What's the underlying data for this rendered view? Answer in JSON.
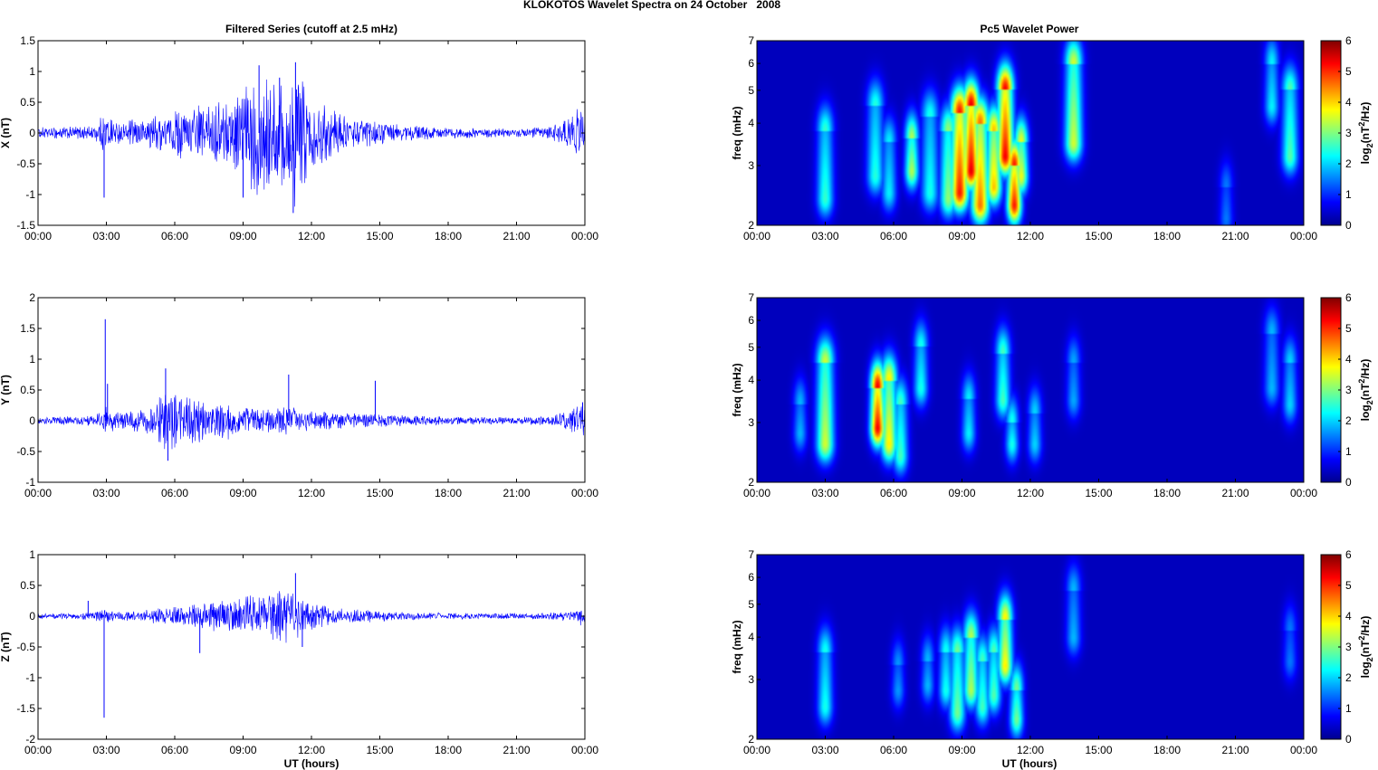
{
  "figure": {
    "title": "KLOKOTOS Wavelet Spectra on 24 October   2008",
    "left_title": "Filtered Series (cutoff at 2.5 mHz)",
    "right_title": "Pc5 Wavelet Power",
    "xlabel": "UT (hours)",
    "colors": {
      "series_line": "#0000ff",
      "background_dark_blue": "#00008f",
      "axes": "#000000"
    }
  },
  "chart_data": [
    {
      "type": "line",
      "panel": "X",
      "ylabel": "X (nT)",
      "xlim": [
        0,
        24
      ],
      "ylim": [
        -1.5,
        1.5
      ],
      "xticks": [
        "00:00",
        "03:00",
        "06:00",
        "09:00",
        "12:00",
        "15:00",
        "18:00",
        "21:00",
        "00:00"
      ],
      "yticks": [
        "-1.5",
        "-1",
        "-0.5",
        "0",
        "0.5",
        "1",
        "1.5"
      ],
      "amplitude_envelope": {
        "x": [
          0,
          2.5,
          2.9,
          3.5,
          5,
          6,
          7,
          8,
          9,
          9.5,
          10,
          10.5,
          11,
          11.3,
          12,
          13,
          14,
          15,
          16,
          18,
          21,
          22.5,
          23.5,
          24
        ],
        "y": [
          0.08,
          0.1,
          0.3,
          0.15,
          0.25,
          0.35,
          0.4,
          0.45,
          0.6,
          0.9,
          1.0,
          0.8,
          1.0,
          1.1,
          0.5,
          0.35,
          0.2,
          0.18,
          0.12,
          0.08,
          0.06,
          0.1,
          0.3,
          0.5
        ]
      },
      "spikes": [
        {
          "x": 2.9,
          "y": -1.05
        },
        {
          "x": 9.0,
          "y": -1.05
        },
        {
          "x": 9.7,
          "y": 1.1
        },
        {
          "x": 10.6,
          "y": 0.9
        },
        {
          "x": 11.2,
          "y": -1.3
        },
        {
          "x": 11.3,
          "y": 1.15
        },
        {
          "x": 24.0,
          "y": -0.6
        }
      ]
    },
    {
      "type": "line",
      "panel": "Y",
      "ylabel": "Y (nT)",
      "xlim": [
        0,
        24
      ],
      "ylim": [
        -1,
        2
      ],
      "xticks": [
        "00:00",
        "03:00",
        "06:00",
        "09:00",
        "12:00",
        "15:00",
        "18:00",
        "21:00",
        "00:00"
      ],
      "yticks": [
        "-1",
        "-0.5",
        "0",
        "0.5",
        "1",
        "1.5",
        "2"
      ],
      "amplitude_envelope": {
        "x": [
          0,
          2.5,
          2.9,
          3.5,
          5,
          5.5,
          6,
          7,
          8,
          9,
          10,
          11,
          12,
          13,
          14.5,
          16,
          18,
          21,
          22.5,
          23.5,
          24
        ],
        "y": [
          0.05,
          0.08,
          0.25,
          0.12,
          0.2,
          0.45,
          0.4,
          0.35,
          0.3,
          0.22,
          0.2,
          0.2,
          0.15,
          0.12,
          0.1,
          0.08,
          0.06,
          0.05,
          0.08,
          0.2,
          0.25
        ]
      },
      "spikes": [
        {
          "x": 2.95,
          "y": 1.65
        },
        {
          "x": 3.05,
          "y": 0.6
        },
        {
          "x": 5.6,
          "y": 0.85
        },
        {
          "x": 5.7,
          "y": -0.65
        },
        {
          "x": 11.0,
          "y": 0.75
        },
        {
          "x": 14.8,
          "y": 0.65
        },
        {
          "x": 23.9,
          "y": 0.3
        }
      ]
    },
    {
      "type": "line",
      "panel": "Z",
      "ylabel": "Z (nT)",
      "xlim": [
        0,
        24
      ],
      "ylim": [
        -2,
        1
      ],
      "xticks": [
        "00:00",
        "03:00",
        "06:00",
        "09:00",
        "12:00",
        "15:00",
        "18:00",
        "21:00",
        "00:00"
      ],
      "yticks": [
        "-2",
        "-1.5",
        "-1",
        "-0.5",
        "0",
        "0.5",
        "1"
      ],
      "amplitude_envelope": {
        "x": [
          0,
          2.2,
          2.9,
          3.5,
          5,
          6,
          7,
          8,
          9,
          10,
          11,
          11.5,
          12,
          13,
          14,
          16,
          18,
          21,
          22.5,
          23.5,
          24
        ],
        "y": [
          0.04,
          0.05,
          0.1,
          0.06,
          0.1,
          0.15,
          0.2,
          0.25,
          0.3,
          0.35,
          0.4,
          0.35,
          0.2,
          0.12,
          0.1,
          0.06,
          0.05,
          0.04,
          0.05,
          0.1,
          0.15
        ]
      },
      "spikes": [
        {
          "x": 2.2,
          "y": 0.25
        },
        {
          "x": 2.9,
          "y": -1.65
        },
        {
          "x": 7.1,
          "y": -0.6
        },
        {
          "x": 11.3,
          "y": 0.7
        },
        {
          "x": 11.6,
          "y": -0.5
        },
        {
          "x": 24.0,
          "y": -0.3
        }
      ]
    },
    {
      "type": "heatmap",
      "panel": "X",
      "ylabel": "freq (mHz)",
      "colorbar_label": "log2(nT^2/Hz)",
      "xlim": [
        0,
        24
      ],
      "ylim": [
        2,
        7
      ],
      "yscale": "log",
      "clim": [
        0,
        6
      ],
      "colormap": "jet",
      "xticks": [
        "00:00",
        "03:00",
        "06:00",
        "09:00",
        "12:00",
        "15:00",
        "18:00",
        "21:00",
        "00:00"
      ],
      "yticks": [
        2,
        3,
        4,
        5,
        6,
        7
      ],
      "cbar_ticks": [
        0,
        1,
        2,
        3,
        4,
        5,
        6
      ],
      "blobs": [
        {
          "t": 3.0,
          "f": 2.4,
          "ft": 3.8,
          "p": 2.4
        },
        {
          "t": 5.2,
          "f": 2.8,
          "ft": 4.5,
          "p": 2.3
        },
        {
          "t": 5.8,
          "f": 2.5,
          "ft": 3.5,
          "p": 2.0
        },
        {
          "t": 6.8,
          "f": 2.9,
          "ft": 3.6,
          "p": 3.2
        },
        {
          "t": 7.6,
          "f": 2.5,
          "ft": 4.2,
          "p": 2.2
        },
        {
          "t": 8.4,
          "f": 2.4,
          "ft": 3.8,
          "p": 3.0
        },
        {
          "t": 8.9,
          "f": 2.5,
          "ft": 4.3,
          "p": 5.2
        },
        {
          "t": 9.4,
          "f": 2.9,
          "ft": 4.5,
          "p": 5.5
        },
        {
          "t": 9.8,
          "f": 2.3,
          "ft": 4.0,
          "p": 4.6
        },
        {
          "t": 10.4,
          "f": 2.6,
          "ft": 3.8,
          "p": 4.1
        },
        {
          "t": 10.9,
          "f": 3.2,
          "ft": 5.0,
          "p": 5.4
        },
        {
          "t": 11.3,
          "f": 2.3,
          "ft": 3.0,
          "p": 5.2
        },
        {
          "t": 11.6,
          "f": 2.8,
          "ft": 3.5,
          "p": 3.6
        },
        {
          "t": 13.9,
          "f": 3.5,
          "ft": 6.0,
          "p": 3.4
        },
        {
          "t": 20.6,
          "f": 2.1,
          "ft": 2.6,
          "p": 1.2
        },
        {
          "t": 22.6,
          "f": 4.5,
          "ft": 6.0,
          "p": 2.0
        },
        {
          "t": 23.4,
          "f": 3.2,
          "ft": 5.0,
          "p": 2.6
        }
      ]
    },
    {
      "type": "heatmap",
      "panel": "Y",
      "ylabel": "freq (mHz)",
      "colorbar_label": "log2(nT^2/Hz)",
      "xlim": [
        0,
        24
      ],
      "ylim": [
        2,
        7
      ],
      "yscale": "log",
      "clim": [
        0,
        6
      ],
      "colormap": "jet",
      "xticks": [
        "00:00",
        "03:00",
        "06:00",
        "09:00",
        "12:00",
        "15:00",
        "18:00",
        "21:00",
        "00:00"
      ],
      "yticks": [
        2,
        3,
        4,
        5,
        6,
        7
      ],
      "cbar_ticks": [
        0,
        1,
        2,
        3,
        4,
        5,
        6
      ],
      "blobs": [
        {
          "t": 1.9,
          "f": 2.8,
          "ft": 3.4,
          "p": 1.6
        },
        {
          "t": 3.0,
          "f": 2.6,
          "ft": 4.5,
          "p": 3.4
        },
        {
          "t": 5.3,
          "f": 2.9,
          "ft": 3.8,
          "p": 5.4
        },
        {
          "t": 5.8,
          "f": 2.6,
          "ft": 4.0,
          "p": 3.8
        },
        {
          "t": 6.3,
          "f": 2.4,
          "ft": 3.4,
          "p": 2.5
        },
        {
          "t": 7.2,
          "f": 3.8,
          "ft": 5.0,
          "p": 2.2
        },
        {
          "t": 9.3,
          "f": 2.8,
          "ft": 3.5,
          "p": 2.0
        },
        {
          "t": 10.8,
          "f": 3.5,
          "ft": 4.8,
          "p": 2.5
        },
        {
          "t": 11.2,
          "f": 2.6,
          "ft": 3.0,
          "p": 2.2
        },
        {
          "t": 12.2,
          "f": 2.6,
          "ft": 3.2,
          "p": 1.8
        },
        {
          "t": 13.9,
          "f": 3.5,
          "ft": 4.5,
          "p": 1.5
        },
        {
          "t": 22.6,
          "f": 3.8,
          "ft": 5.5,
          "p": 1.6
        },
        {
          "t": 23.4,
          "f": 3.4,
          "ft": 4.5,
          "p": 1.8
        }
      ]
    },
    {
      "type": "heatmap",
      "panel": "Z",
      "ylabel": "freq (mHz)",
      "colorbar_label": "log2(nT^2/Hz)",
      "xlim": [
        0,
        24
      ],
      "ylim": [
        2,
        7
      ],
      "yscale": "log",
      "clim": [
        0,
        6
      ],
      "colormap": "jet",
      "xticks": [
        "00:00",
        "03:00",
        "06:00",
        "09:00",
        "12:00",
        "15:00",
        "18:00",
        "21:00",
        "00:00"
      ],
      "yticks": [
        2,
        3,
        4,
        5,
        6,
        7
      ],
      "cbar_ticks": [
        0,
        1,
        2,
        3,
        4,
        5,
        6
      ],
      "blobs": [
        {
          "t": 3.0,
          "f": 2.5,
          "ft": 3.6,
          "p": 2.2
        },
        {
          "t": 6.2,
          "f": 2.8,
          "ft": 3.3,
          "p": 1.4
        },
        {
          "t": 7.5,
          "f": 2.9,
          "ft": 3.4,
          "p": 1.6
        },
        {
          "t": 8.3,
          "f": 2.8,
          "ft": 3.6,
          "p": 2.2
        },
        {
          "t": 8.8,
          "f": 2.4,
          "ft": 3.6,
          "p": 2.8
        },
        {
          "t": 9.4,
          "f": 2.8,
          "ft": 4.0,
          "p": 3.2
        },
        {
          "t": 9.9,
          "f": 2.5,
          "ft": 3.4,
          "p": 2.5
        },
        {
          "t": 10.4,
          "f": 2.7,
          "ft": 3.6,
          "p": 2.6
        },
        {
          "t": 10.9,
          "f": 3.3,
          "ft": 4.5,
          "p": 3.8
        },
        {
          "t": 11.4,
          "f": 2.3,
          "ft": 2.8,
          "p": 2.8
        },
        {
          "t": 13.9,
          "f": 4.0,
          "ft": 5.5,
          "p": 1.6
        },
        {
          "t": 23.4,
          "f": 3.4,
          "ft": 4.2,
          "p": 1.2
        }
      ]
    }
  ]
}
